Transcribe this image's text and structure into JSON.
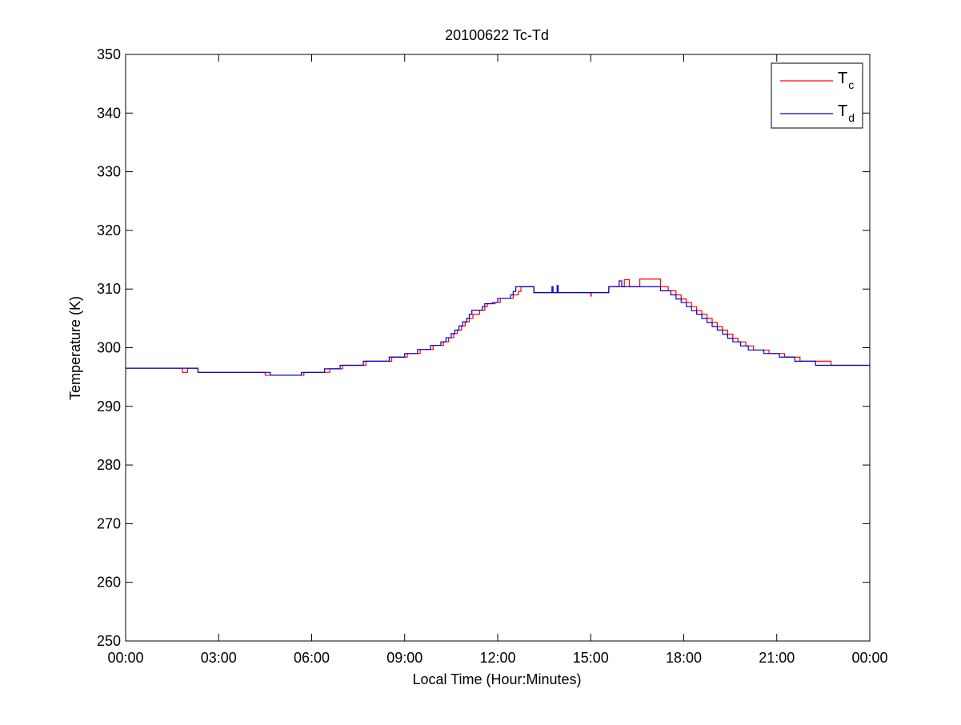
{
  "chart_data": {
    "type": "line",
    "title": "20100622 Tc-Td",
    "xlabel": "Local Time (Hour:Minutes)",
    "ylabel": "Temperature (K)",
    "xlim": [
      "00:00",
      "24:00"
    ],
    "ylim": [
      250,
      350
    ],
    "x_tick_labels": [
      "00:00",
      "03:00",
      "06:00",
      "09:00",
      "12:00",
      "15:00",
      "18:00",
      "21:00",
      "00:00"
    ],
    "y_ticks": [
      250,
      260,
      270,
      280,
      290,
      300,
      310,
      320,
      330,
      340,
      350
    ],
    "grid": false,
    "legend_position": "top-right",
    "series": [
      {
        "name": "T_c",
        "legend_main": "T",
        "legend_sub": "c",
        "color": "#ff0000",
        "points": [
          [
            "00:00",
            296.5
          ],
          [
            "01:50",
            296.5
          ],
          [
            "01:50",
            295.8
          ],
          [
            "02:00",
            295.8
          ],
          [
            "02:00",
            296.5
          ],
          [
            "02:20",
            296.5
          ],
          [
            "02:20",
            295.8
          ],
          [
            "04:30",
            295.8
          ],
          [
            "04:30",
            295.3
          ],
          [
            "05:45",
            295.3
          ],
          [
            "05:45",
            295.8
          ],
          [
            "06:35",
            295.8
          ],
          [
            "06:35",
            296.4
          ],
          [
            "07:00",
            296.4
          ],
          [
            "07:00",
            297.0
          ],
          [
            "07:45",
            297.0
          ],
          [
            "07:45",
            297.7
          ],
          [
            "08:35",
            297.7
          ],
          [
            "08:35",
            298.4
          ],
          [
            "09:05",
            298.4
          ],
          [
            "09:05",
            299.0
          ],
          [
            "09:30",
            299.0
          ],
          [
            "09:30",
            299.7
          ],
          [
            "09:55",
            299.7
          ],
          [
            "09:55",
            300.4
          ],
          [
            "10:15",
            300.4
          ],
          [
            "10:15",
            301.0
          ],
          [
            "10:25",
            301.0
          ],
          [
            "10:25",
            301.7
          ],
          [
            "10:35",
            301.7
          ],
          [
            "10:35",
            302.4
          ],
          [
            "10:42",
            302.4
          ],
          [
            "10:42",
            303.0
          ],
          [
            "10:50",
            303.0
          ],
          [
            "10:50",
            303.7
          ],
          [
            "10:57",
            303.7
          ],
          [
            "10:57",
            304.4
          ],
          [
            "11:05",
            304.4
          ],
          [
            "11:05",
            305.0
          ],
          [
            "11:12",
            305.0
          ],
          [
            "11:12",
            305.7
          ],
          [
            "11:25",
            305.7
          ],
          [
            "11:25",
            306.4
          ],
          [
            "11:35",
            306.4
          ],
          [
            "11:35",
            307.0
          ],
          [
            "11:40",
            307.0
          ],
          [
            "11:40",
            307.5
          ],
          [
            "11:55",
            307.5
          ],
          [
            "11:55",
            307.7
          ],
          [
            "12:05",
            307.7
          ],
          [
            "12:05",
            308.4
          ],
          [
            "12:30",
            308.4
          ],
          [
            "12:30",
            309.0
          ],
          [
            "12:40",
            309.0
          ],
          [
            "12:40",
            309.6
          ],
          [
            "12:45",
            309.6
          ],
          [
            "12:45",
            310.4
          ],
          [
            "13:10",
            310.4
          ],
          [
            "13:10",
            309.4
          ],
          [
            "15:00",
            309.4
          ],
          [
            "15:00",
            308.8
          ],
          [
            "15:01",
            308.8
          ],
          [
            "15:01",
            309.4
          ],
          [
            "15:35",
            309.4
          ],
          [
            "15:35",
            310.4
          ],
          [
            "16:05",
            310.4
          ],
          [
            "16:05",
            311.6
          ],
          [
            "16:15",
            311.6
          ],
          [
            "16:15",
            310.4
          ],
          [
            "16:35",
            310.4
          ],
          [
            "16:35",
            311.7
          ],
          [
            "17:15",
            311.7
          ],
          [
            "17:15",
            310.4
          ],
          [
            "17:30",
            310.4
          ],
          [
            "17:30",
            309.7
          ],
          [
            "17:45",
            309.7
          ],
          [
            "17:45",
            309.0
          ],
          [
            "17:55",
            309.0
          ],
          [
            "17:55",
            308.3
          ],
          [
            "18:05",
            308.3
          ],
          [
            "18:05",
            307.7
          ],
          [
            "18:15",
            307.7
          ],
          [
            "18:15",
            307.0
          ],
          [
            "18:25",
            307.0
          ],
          [
            "18:25",
            306.3
          ],
          [
            "18:35",
            306.3
          ],
          [
            "18:35",
            305.7
          ],
          [
            "18:45",
            305.7
          ],
          [
            "18:45",
            305.0
          ],
          [
            "18:55",
            305.0
          ],
          [
            "18:55",
            304.3
          ],
          [
            "19:05",
            304.3
          ],
          [
            "19:05",
            303.6
          ],
          [
            "19:15",
            303.6
          ],
          [
            "19:15",
            303.0
          ],
          [
            "19:25",
            303.0
          ],
          [
            "19:25",
            302.3
          ],
          [
            "19:35",
            302.3
          ],
          [
            "19:35",
            301.6
          ],
          [
            "19:45",
            301.6
          ],
          [
            "19:45",
            301.0
          ],
          [
            "20:00",
            301.0
          ],
          [
            "20:00",
            300.3
          ],
          [
            "20:15",
            300.3
          ],
          [
            "20:15",
            299.6
          ],
          [
            "20:45",
            299.6
          ],
          [
            "20:45",
            299.0
          ],
          [
            "21:15",
            299.0
          ],
          [
            "21:15",
            298.4
          ],
          [
            "21:45",
            298.4
          ],
          [
            "21:45",
            297.7
          ],
          [
            "22:45",
            297.7
          ],
          [
            "22:45",
            297.0
          ],
          [
            "24:00",
            297.0
          ]
        ]
      },
      {
        "name": "T_d",
        "legend_main": "T",
        "legend_sub": "d",
        "color": "#0000cc",
        "points": [
          [
            "00:00",
            296.5
          ],
          [
            "02:20",
            296.5
          ],
          [
            "02:20",
            295.8
          ],
          [
            "04:40",
            295.8
          ],
          [
            "04:40",
            295.3
          ],
          [
            "05:40",
            295.3
          ],
          [
            "05:40",
            295.8
          ],
          [
            "06:25",
            295.8
          ],
          [
            "06:25",
            296.4
          ],
          [
            "06:55",
            296.4
          ],
          [
            "06:55",
            297.0
          ],
          [
            "07:40",
            297.0
          ],
          [
            "07:40",
            297.7
          ],
          [
            "08:30",
            297.7
          ],
          [
            "08:30",
            298.4
          ],
          [
            "09:00",
            298.4
          ],
          [
            "09:00",
            299.0
          ],
          [
            "09:25",
            299.0
          ],
          [
            "09:25",
            299.7
          ],
          [
            "09:50",
            299.7
          ],
          [
            "09:50",
            300.4
          ],
          [
            "10:10",
            300.4
          ],
          [
            "10:10",
            301.0
          ],
          [
            "10:20",
            301.0
          ],
          [
            "10:20",
            301.7
          ],
          [
            "10:30",
            301.7
          ],
          [
            "10:30",
            302.4
          ],
          [
            "10:37",
            302.4
          ],
          [
            "10:37",
            303.0
          ],
          [
            "10:45",
            303.0
          ],
          [
            "10:45",
            303.7
          ],
          [
            "10:52",
            303.7
          ],
          [
            "10:52",
            304.4
          ],
          [
            "11:00",
            304.4
          ],
          [
            "11:00",
            305.0
          ],
          [
            "11:05",
            305.0
          ],
          [
            "11:05",
            305.7
          ],
          [
            "11:10",
            305.7
          ],
          [
            "11:10",
            306.4
          ],
          [
            "11:30",
            306.4
          ],
          [
            "11:30",
            307.0
          ],
          [
            "11:35",
            307.0
          ],
          [
            "11:35",
            307.5
          ],
          [
            "11:50",
            307.5
          ],
          [
            "11:50",
            307.7
          ],
          [
            "12:00",
            307.7
          ],
          [
            "12:00",
            308.4
          ],
          [
            "12:25",
            308.4
          ],
          [
            "12:25",
            309.0
          ],
          [
            "12:30",
            309.0
          ],
          [
            "12:30",
            309.6
          ],
          [
            "12:35",
            309.6
          ],
          [
            "12:35",
            310.4
          ],
          [
            "13:10",
            310.4
          ],
          [
            "13:10",
            309.4
          ],
          [
            "13:45",
            309.4
          ],
          [
            "13:45",
            310.4
          ],
          [
            "13:47",
            310.4
          ],
          [
            "13:47",
            309.4
          ],
          [
            "13:55",
            309.4
          ],
          [
            "13:55",
            310.6
          ],
          [
            "13:57",
            310.6
          ],
          [
            "13:57",
            309.4
          ],
          [
            "15:35",
            309.4
          ],
          [
            "15:35",
            310.4
          ],
          [
            "15:55",
            310.4
          ],
          [
            "15:55",
            311.4
          ],
          [
            "16:00",
            311.4
          ],
          [
            "16:00",
            310.4
          ],
          [
            "17:15",
            310.4
          ],
          [
            "17:15",
            309.7
          ],
          [
            "17:35",
            309.7
          ],
          [
            "17:35",
            309.0
          ],
          [
            "17:45",
            309.0
          ],
          [
            "17:45",
            308.3
          ],
          [
            "17:55",
            308.3
          ],
          [
            "17:55",
            307.7
          ],
          [
            "18:05",
            307.7
          ],
          [
            "18:05",
            307.0
          ],
          [
            "18:15",
            307.0
          ],
          [
            "18:15",
            306.3
          ],
          [
            "18:25",
            306.3
          ],
          [
            "18:25",
            305.7
          ],
          [
            "18:35",
            305.7
          ],
          [
            "18:35",
            305.0
          ],
          [
            "18:45",
            305.0
          ],
          [
            "18:45",
            304.3
          ],
          [
            "18:55",
            304.3
          ],
          [
            "18:55",
            303.6
          ],
          [
            "19:05",
            303.6
          ],
          [
            "19:05",
            303.0
          ],
          [
            "19:15",
            303.0
          ],
          [
            "19:15",
            302.3
          ],
          [
            "19:25",
            302.3
          ],
          [
            "19:25",
            301.6
          ],
          [
            "19:35",
            301.6
          ],
          [
            "19:35",
            301.0
          ],
          [
            "19:50",
            301.0
          ],
          [
            "19:50",
            300.3
          ],
          [
            "20:05",
            300.3
          ],
          [
            "20:05",
            299.6
          ],
          [
            "20:35",
            299.6
          ],
          [
            "20:35",
            299.0
          ],
          [
            "21:05",
            299.0
          ],
          [
            "21:05",
            298.4
          ],
          [
            "21:35",
            298.4
          ],
          [
            "21:35",
            297.7
          ],
          [
            "22:15",
            297.7
          ],
          [
            "22:15",
            297.0
          ],
          [
            "24:00",
            297.0
          ],
          [
            "24:00",
            296.5
          ]
        ]
      }
    ]
  }
}
